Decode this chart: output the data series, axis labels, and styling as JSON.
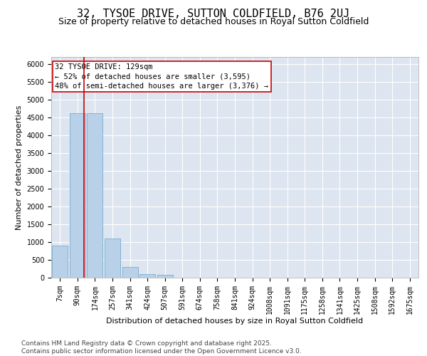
{
  "title": "32, TYSOE DRIVE, SUTTON COLDFIELD, B76 2UJ",
  "subtitle": "Size of property relative to detached houses in Royal Sutton Coldfield",
  "xlabel": "Distribution of detached houses by size in Royal Sutton Coldfield",
  "ylabel": "Number of detached properties",
  "categories": [
    "7sqm",
    "90sqm",
    "174sqm",
    "257sqm",
    "341sqm",
    "424sqm",
    "507sqm",
    "591sqm",
    "674sqm",
    "758sqm",
    "841sqm",
    "924sqm",
    "1008sqm",
    "1091sqm",
    "1175sqm",
    "1258sqm",
    "1341sqm",
    "1425sqm",
    "1508sqm",
    "1592sqm",
    "1675sqm"
  ],
  "values": [
    900,
    4620,
    4620,
    1100,
    310,
    100,
    75,
    0,
    0,
    0,
    0,
    0,
    0,
    0,
    0,
    0,
    0,
    0,
    0,
    0,
    0
  ],
  "bar_color": "#b8d0e8",
  "bar_edge_color": "#7aacce",
  "red_line_x": 1.38,
  "annotation_line1": "32 TYSOE DRIVE: 129sqm",
  "annotation_line2": "← 52% of detached houses are smaller (3,595)",
  "annotation_line3": "48% of semi-detached houses are larger (3,376) →",
  "annotation_box_color": "#ffffff",
  "annotation_edge_color": "#cc0000",
  "annotation_text_color": "#000000",
  "red_line_color": "#cc0000",
  "ylim": [
    0,
    6200
  ],
  "yticks": [
    0,
    500,
    1000,
    1500,
    2000,
    2500,
    3000,
    3500,
    4000,
    4500,
    5000,
    5500,
    6000
  ],
  "background_color": "#dde5f0",
  "grid_color": "#c8d4e6",
  "footer_text": "Contains HM Land Registry data © Crown copyright and database right 2025.\nContains public sector information licensed under the Open Government Licence v3.0.",
  "title_fontsize": 11,
  "subtitle_fontsize": 9,
  "axis_label_fontsize": 8,
  "tick_fontsize": 7,
  "annotation_fontsize": 7.5,
  "footer_fontsize": 6.5
}
